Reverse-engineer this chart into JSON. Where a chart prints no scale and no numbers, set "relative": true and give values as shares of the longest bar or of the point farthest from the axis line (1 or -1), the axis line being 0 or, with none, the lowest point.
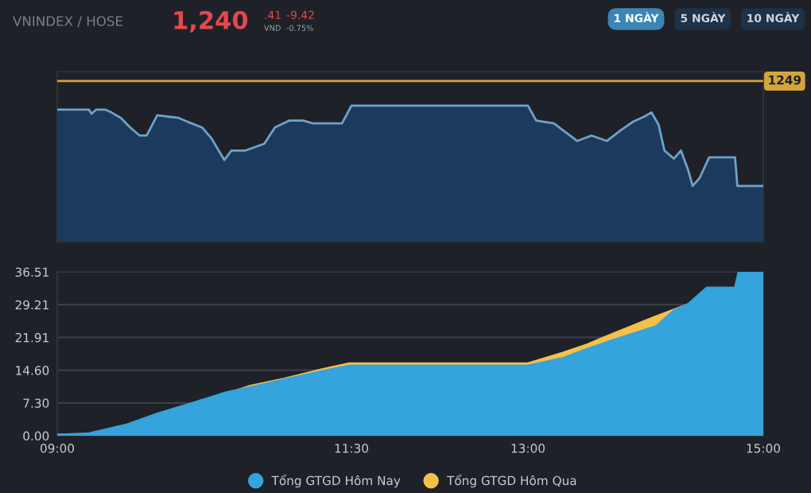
{
  "chart_data": [
    {
      "type": "other",
      "title": "VNINDEX / HOSE",
      "annotations": [
        "1,240",
        ".41",
        "VND",
        "-9.42",
        "-0.75%",
        "1 NGÀY",
        "5 NGÀY",
        "10 NGÀY"
      ]
    },
    {
      "type": "area",
      "relative": true,
      "xlim": [
        9,
        15
      ],
      "annotations": [
        "1249"
      ],
      "ref_lines": [
        {
          "axis": "y",
          "value": 1.18,
          "color": "#d4a63a"
        }
      ],
      "series": [
        {
          "color": "#6fa3c9",
          "x": [
            9.0,
            9.27,
            9.29,
            9.33,
            9.41,
            9.46,
            9.54,
            9.62,
            9.7,
            9.76,
            9.85,
            9.93,
            10.03,
            10.11,
            10.23,
            10.31,
            10.42,
            10.48,
            10.6,
            10.76,
            10.85,
            10.97,
            11.09,
            11.17,
            11.42,
            11.5,
            13.0,
            13.07,
            13.22,
            13.42,
            13.54,
            13.67,
            13.79,
            13.89,
            13.99,
            14.05,
            14.11,
            14.16,
            14.24,
            14.3,
            14.36,
            14.4,
            14.46,
            14.54,
            14.76,
            14.78,
            15.0
          ],
          "values": [
            0.97,
            0.97,
            0.94,
            0.97,
            0.97,
            0.95,
            0.91,
            0.84,
            0.78,
            0.78,
            0.93,
            0.92,
            0.91,
            0.88,
            0.84,
            0.76,
            0.6,
            0.67,
            0.67,
            0.72,
            0.84,
            0.89,
            0.89,
            0.87,
            0.87,
            1.0,
            1.0,
            0.89,
            0.87,
            0.74,
            0.78,
            0.74,
            0.82,
            0.88,
            0.92,
            0.95,
            0.86,
            0.67,
            0.61,
            0.67,
            0.53,
            0.41,
            0.47,
            0.62,
            0.62,
            0.41,
            0.41
          ]
        }
      ]
    },
    {
      "type": "area",
      "xlim": [
        9,
        15
      ],
      "ylim": [
        0,
        36.51
      ],
      "grid": "y",
      "legend": "bottom",
      "xticks": [
        {
          "value": 9,
          "label": "09:00"
        },
        {
          "value": 11.5,
          "label": "11:30"
        },
        {
          "value": 13,
          "label": "13:00"
        },
        {
          "value": 15,
          "label": "15:00"
        }
      ],
      "yticks": [
        {
          "value": 0,
          "label": "0.00"
        },
        {
          "value": 7.3,
          "label": "7.30"
        },
        {
          "value": 14.6,
          "label": "14.60"
        },
        {
          "value": 21.91,
          "label": "21.91"
        },
        {
          "value": 29.21,
          "label": "29.21"
        },
        {
          "value": 36.51,
          "label": "36.51"
        }
      ],
      "series": [
        {
          "name": "Tổng GTGD Hôm Nay",
          "color": "#35a3dc",
          "x": [
            9.0,
            9.27,
            9.58,
            9.86,
            10.15,
            10.44,
            10.64,
            10.93,
            11.25,
            11.48,
            13.0,
            13.3,
            13.5,
            13.71,
            14.09,
            14.24,
            14.36,
            14.52,
            14.76,
            14.79,
            15.0
          ],
          "values": [
            0.2,
            0.5,
            2.4,
            5.0,
            7.3,
            9.7,
            10.8,
            12.5,
            14.4,
            15.6,
            15.6,
            17.3,
            19.3,
            21.2,
            24.4,
            27.9,
            29.3,
            33.0,
            33.0,
            36.4,
            36.4
          ]
        },
        {
          "name": "Tổng GTGD Hôm Qua",
          "color": "#f5c04a",
          "x": [
            9.0,
            9.27,
            9.58,
            9.86,
            10.15,
            10.44,
            10.64,
            10.93,
            11.25,
            11.48,
            13.0,
            13.3,
            13.5,
            13.71,
            14.07,
            14.36
          ],
          "values": [
            0.2,
            0.2,
            2.0,
            4.7,
            7.1,
            9.4,
            11.1,
            12.7,
            14.8,
            16.1,
            16.1,
            18.5,
            20.3,
            22.6,
            26.4,
            29.3
          ]
        }
      ]
    }
  ]
}
